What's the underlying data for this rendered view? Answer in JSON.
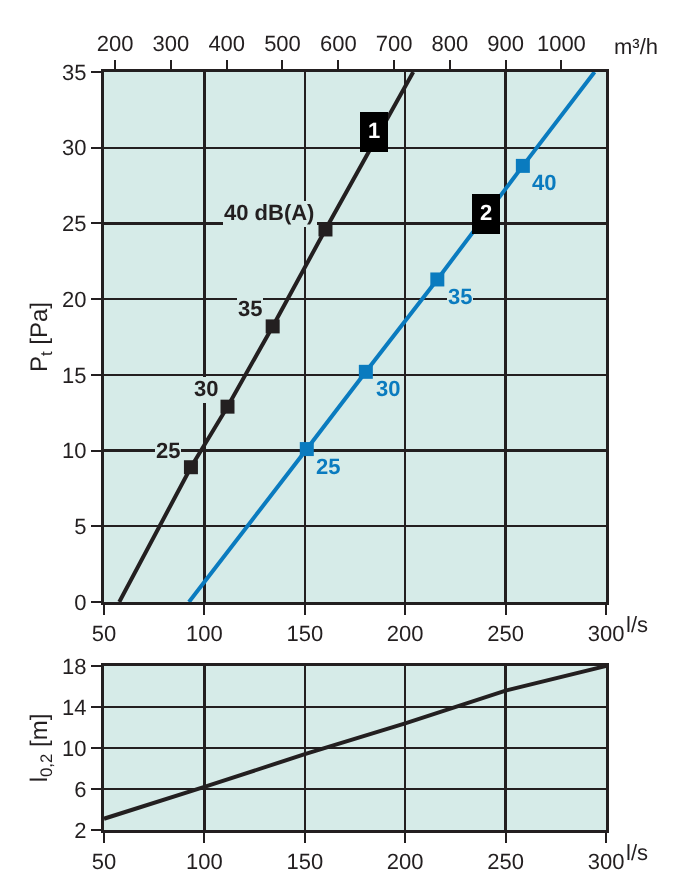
{
  "chart_data": [
    {
      "type": "line",
      "xlabel": "l/s",
      "x2label": "m³/h",
      "ylabel": "P$_{t}$ [Pa]",
      "xlim": [
        50,
        300
      ],
      "xticks": [
        50,
        100,
        150,
        200,
        250,
        300
      ],
      "x2lim": [
        180,
        1080
      ],
      "x2ticks": [
        200,
        300,
        400,
        500,
        600,
        700,
        800,
        900,
        1000
      ],
      "ylim": [
        0,
        35
      ],
      "yticks": [
        0,
        5,
        10,
        15,
        20,
        25,
        30,
        35
      ],
      "grid": true,
      "series": [
        {
          "color": "#231f20",
          "marker": "none",
          "x": [
            57.6,
            93.3,
            111.5,
            134,
            160.3,
            204
          ],
          "values": [
            0,
            8.9,
            12.9,
            18.2,
            24.6,
            35
          ]
        },
        {
          "color": "#0a7bbf",
          "marker": "none",
          "x": [
            92.3,
            151,
            180.4,
            216,
            258.6,
            294.3
          ],
          "values": [
            0,
            10.1,
            15.2,
            21.3,
            28.8,
            35
          ]
        },
        {
          "type": "scatter",
          "color": "#231f20",
          "marker": "square",
          "x": [
            93.3,
            111.5,
            134,
            160.3
          ],
          "values": [
            8.9,
            12.9,
            18.2,
            24.6
          ]
        },
        {
          "type": "scatter",
          "color": "#0a7bbf",
          "marker": "square",
          "x": [
            151,
            180.4,
            216,
            258.6
          ],
          "values": [
            10.1,
            15.2,
            21.3,
            28.8
          ]
        }
      ],
      "annotations": [
        {
          "text": "25",
          "x": 93.3,
          "y": 8.9
        },
        {
          "text": "30",
          "x": 111.5,
          "y": 12.9
        },
        {
          "text": "35",
          "x": 134,
          "y": 18.2
        },
        {
          "text": "40 dB(A)",
          "x": 160.3,
          "y": 24.6
        },
        {
          "text": "25",
          "x": 151,
          "y": 10.1
        },
        {
          "text": "30",
          "x": 180.4,
          "y": 15.2
        },
        {
          "text": "35",
          "x": 216,
          "y": 21.3
        },
        {
          "text": "40",
          "x": 258.6,
          "y": 28.8
        },
        {
          "text": "1",
          "x": 184,
          "y": 31
        },
        {
          "text": "2",
          "x": 240,
          "y": 25.6
        }
      ]
    },
    {
      "type": "line",
      "xlabel": "l/s",
      "ylabel": "l$_{0,2}$ [m]",
      "xlim": [
        50,
        300
      ],
      "xticks": [
        50,
        100,
        150,
        200,
        250,
        300
      ],
      "ylim": [
        2,
        18
      ],
      "yticks": [
        2,
        6,
        10,
        14,
        18
      ],
      "grid": true,
      "series": [
        {
          "color": "#231f20",
          "marker": "none",
          "x": [
            50,
            100,
            150,
            200,
            250,
            300
          ],
          "values": [
            3.1,
            6.2,
            9.4,
            12.4,
            15.6,
            18
          ]
        }
      ]
    }
  ]
}
